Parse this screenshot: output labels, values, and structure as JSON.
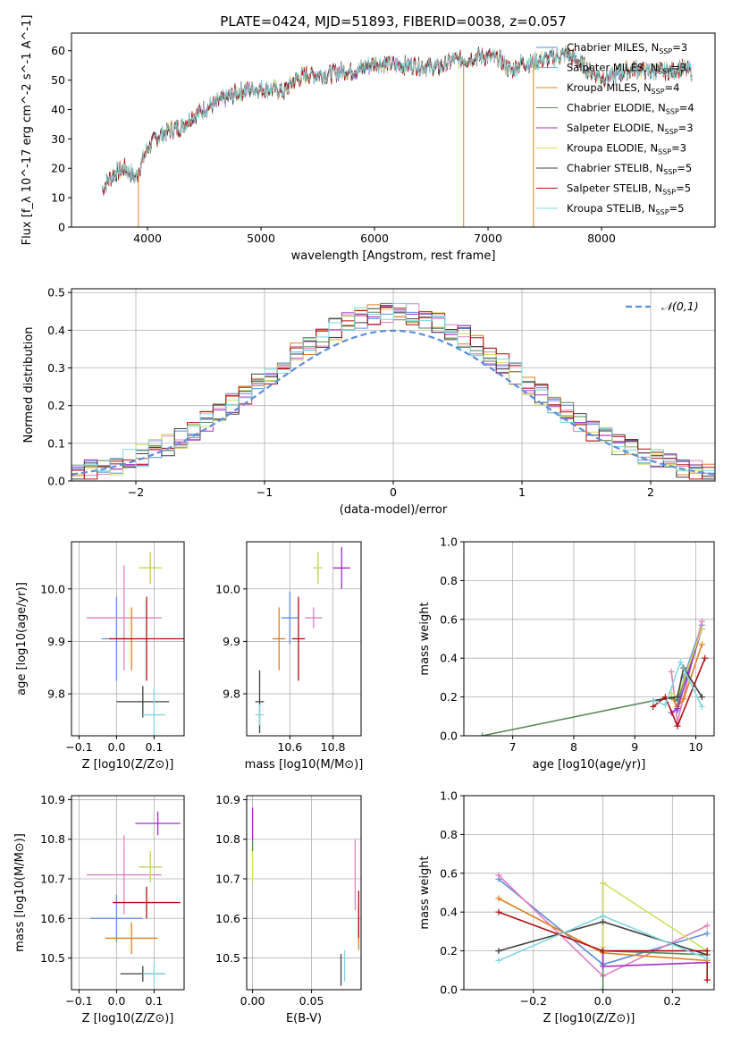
{
  "figure": {
    "title": "PLATE=0424, MJD=51893, FIBERID=0038, z=0.057"
  },
  "colors": {
    "Chabrier MILES": "#5b8fdc",
    "Salpeter MILES": "#e080c0",
    "Kroupa MILES": "#e08020",
    "Chabrier ELODIE": "#5a8a5a",
    "Salpeter ELODIE": "#a030c0",
    "Kroupa ELODIE": "#d0e060",
    "Chabrier STELIB": "#404040",
    "Salpeter STELIB": "#b01010",
    "Kroupa STELIB": "#80d8e0"
  },
  "legend_spectrum": [
    {
      "label": "Chabrier MILES, N_SSP=3",
      "model": "Chabrier MILES"
    },
    {
      "label": "Salpeter MILES, N_SSP=3",
      "model": "Salpeter MILES"
    },
    {
      "label": "Kroupa MILES, N_SSP=4",
      "model": "Kroupa MILES"
    },
    {
      "label": "Chabrier ELODIE, N_SSP=4",
      "model": "Chabrier ELODIE"
    },
    {
      "label": "Salpeter ELODIE, N_SSP=3",
      "model": "Salpeter ELODIE"
    },
    {
      "label": "Kroupa ELODIE, N_SSP=3",
      "model": "Kroupa ELODIE"
    },
    {
      "label": "Chabrier STELIB, N_SSP=5",
      "model": "Chabrier STELIB"
    },
    {
      "label": "Salpeter STELIB, N_SSP=5",
      "model": "Salpeter STELIB"
    },
    {
      "label": "Kroupa STELIB, N_SSP=5",
      "model": "Kroupa STELIB"
    }
  ],
  "chart_data": [
    {
      "type": "line",
      "id": "spectrum",
      "xlabel": "wavelength [Angstrom, rest frame]",
      "ylabel": "Flux [f_λ 10^-17 erg cm^-2 s^-1 A^-1]",
      "xlim": [
        3330,
        9000
      ],
      "ylim": [
        0,
        66
      ],
      "xticks": [
        "4000",
        "5000",
        "6000",
        "7000",
        "8000"
      ],
      "yticks": [
        "0",
        "10",
        "20",
        "30",
        "40",
        "50",
        "60"
      ],
      "grid": false,
      "legend_position": "right",
      "continuum": [
        [
          3600,
          13
        ],
        [
          3700,
          18
        ],
        [
          3800,
          20
        ],
        [
          3900,
          17
        ],
        [
          4000,
          27
        ],
        [
          4100,
          31
        ],
        [
          4200,
          33
        ],
        [
          4300,
          34
        ],
        [
          4400,
          38
        ],
        [
          4500,
          40
        ],
        [
          4600,
          42
        ],
        [
          4700,
          44
        ],
        [
          4800,
          46
        ],
        [
          4900,
          47
        ],
        [
          5000,
          47
        ],
        [
          5100,
          47
        ],
        [
          5200,
          46
        ],
        [
          5300,
          50
        ],
        [
          5400,
          52
        ],
        [
          5500,
          52
        ],
        [
          5600,
          52
        ],
        [
          5700,
          53
        ],
        [
          5800,
          53
        ],
        [
          5900,
          54
        ],
        [
          6000,
          56
        ],
        [
          6200,
          55
        ],
        [
          6400,
          55
        ],
        [
          6560,
          54
        ],
        [
          6700,
          57
        ],
        [
          6800,
          57
        ],
        [
          6900,
          58
        ],
        [
          7000,
          58
        ],
        [
          7100,
          57
        ],
        [
          7200,
          53
        ],
        [
          7300,
          56
        ],
        [
          7400,
          56
        ],
        [
          7500,
          57
        ],
        [
          7600,
          58
        ],
        [
          7700,
          59
        ],
        [
          7800,
          56
        ],
        [
          7900,
          53
        ],
        [
          8000,
          51
        ],
        [
          8100,
          51
        ],
        [
          8200,
          53
        ],
        [
          8300,
          54
        ],
        [
          8400,
          53
        ],
        [
          8500,
          53
        ],
        [
          8600,
          53
        ],
        [
          8700,
          54
        ],
        [
          8800,
          53
        ]
      ],
      "dropouts": [
        [
          3920,
          0
        ],
        [
          6785,
          0
        ],
        [
          7400,
          0
        ]
      ]
    },
    {
      "type": "line",
      "id": "residual-distribution",
      "xlabel": "(data-model)/error",
      "ylabel": "Normed distribution",
      "xlim": [
        -2.5,
        2.5
      ],
      "ylim": [
        0,
        0.51
      ],
      "xticks": [
        "−2",
        "−1",
        "0",
        "1",
        "2"
      ],
      "yticks": [
        "0.0",
        "0.1",
        "0.2",
        "0.3",
        "0.4",
        "0.5"
      ],
      "grid": true,
      "legend": "𝒩(0,1)",
      "legend_position": "top-right",
      "bin_width": 0.1,
      "bin_start": -2.5,
      "base_histogram": [
        0.02,
        0.03,
        0.04,
        0.05,
        0.06,
        0.07,
        0.07,
        0.08,
        0.09,
        0.1,
        0.12,
        0.13,
        0.15,
        0.16,
        0.19,
        0.21,
        0.23,
        0.24,
        0.27,
        0.3,
        0.31,
        0.34,
        0.37,
        0.38,
        0.4,
        0.43,
        0.43,
        0.44,
        0.45,
        0.44,
        0.42,
        0.42,
        0.41,
        0.4,
        0.38,
        0.37,
        0.36,
        0.33,
        0.32,
        0.3,
        0.27,
        0.26,
        0.23,
        0.22,
        0.2,
        0.17,
        0.16,
        0.13,
        0.12,
        0.1,
        0.08,
        0.08,
        0.07,
        0.06,
        0.05,
        0.05,
        0.04,
        0.03,
        0.03,
        0.02,
        0.03,
        0.02,
        0.02,
        0.02,
        0.02,
        0.02,
        0.02,
        0.02,
        0.02,
        0.02,
        0.02,
        0.02,
        0.03,
        0.02,
        0.03,
        0.03,
        0.02,
        0.03,
        0.02,
        0.02,
        0.02,
        0.02,
        0.02,
        0.02,
        0.02,
        0.02,
        0.02,
        0.02,
        0.02,
        0.02,
        0.02,
        0.02,
        0.02,
        0.02,
        0.02,
        0.02,
        0.02,
        0.02,
        0.02,
        0.02
      ]
    },
    {
      "type": "scatter",
      "id": "age-vs-metallicity",
      "xlabel": "Z [log10(Z/Z⊙)]",
      "ylabel": "age [log10(age/yr)]",
      "xlim": [
        -0.12,
        0.18
      ],
      "ylim": [
        9.72,
        10.09
      ],
      "xticks": [
        "−0.1",
        "0.0",
        "0.1"
      ],
      "yticks": [
        "9.8",
        "9.9",
        "10.0"
      ],
      "grid": true,
      "points": [
        {
          "model": "Chabrier MILES",
          "x": 0.0,
          "y": 9.905,
          "dx": 0.04,
          "dy": 0.08
        },
        {
          "model": "Salpeter MILES",
          "x": 0.02,
          "y": 9.945,
          "dx": 0.1,
          "dy": 0.1
        },
        {
          "model": "Kroupa MILES",
          "x": 0.04,
          "y": 9.905,
          "dx": 0.04,
          "dy": 0.06
        },
        {
          "model": "Chabrier ELODIE",
          "x": 0.09,
          "y": 10.04,
          "dx": 0.03,
          "dy": 0.03
        },
        {
          "model": "Salpeter ELODIE",
          "x": 0.09,
          "y": 10.04,
          "dx": 0.02,
          "dy": 0.03
        },
        {
          "model": "Kroupa ELODIE",
          "x": 0.09,
          "y": 10.04,
          "dx": 0.03,
          "dy": 0.03
        },
        {
          "model": "Chabrier STELIB",
          "x": 0.07,
          "y": 9.785,
          "dx": 0.07,
          "dy": 0.03
        },
        {
          "model": "Salpeter STELIB",
          "x": 0.08,
          "y": 9.905,
          "dx": 0.1,
          "dy": 0.08
        },
        {
          "model": "Kroupa STELIB",
          "x": 0.1,
          "y": 9.76,
          "dx": 0.03,
          "dy": 0.05
        }
      ]
    },
    {
      "type": "scatter",
      "id": "age-vs-mass",
      "xlabel": "mass [log10(M/M⊙)]",
      "ylabel": "",
      "xlim": [
        10.4,
        10.93
      ],
      "ylim": [
        9.72,
        10.09
      ],
      "xticks": [
        "10.6",
        "10.8"
      ],
      "yticks": [
        "9.8",
        "9.9",
        "10.0"
      ],
      "grid": true,
      "points": [
        {
          "model": "Chabrier MILES",
          "x": 10.6,
          "y": 9.945,
          "dx": 0.04,
          "dy": 0.05
        },
        {
          "model": "Salpeter MILES",
          "x": 10.71,
          "y": 9.945,
          "dx": 0.04,
          "dy": 0.02
        },
        {
          "model": "Kroupa MILES",
          "x": 10.55,
          "y": 9.905,
          "dx": 0.03,
          "dy": 0.06
        },
        {
          "model": "Chabrier ELODIE",
          "x": 10.73,
          "y": 10.04,
          "dx": 0.02,
          "dy": 0.03
        },
        {
          "model": "Salpeter ELODIE",
          "x": 10.84,
          "y": 10.04,
          "dx": 0.04,
          "dy": 0.04
        },
        {
          "model": "Kroupa ELODIE",
          "x": 10.73,
          "y": 10.04,
          "dx": 0.02,
          "dy": 0.03
        },
        {
          "model": "Chabrier STELIB",
          "x": 10.46,
          "y": 9.785,
          "dx": 0.02,
          "dy": 0.06
        },
        {
          "model": "Salpeter STELIB",
          "x": 10.64,
          "y": 9.905,
          "dx": 0.03,
          "dy": 0.08
        },
        {
          "model": "Kroupa STELIB",
          "x": 10.46,
          "y": 9.76,
          "dx": 0.02,
          "dy": 0.02
        }
      ]
    },
    {
      "type": "line",
      "id": "mass-weight-vs-age",
      "xlabel": "age [log10(age/yr)]",
      "ylabel": "mass weight",
      "xlim": [
        6.2,
        10.3
      ],
      "ylim": [
        0,
        1.0
      ],
      "xticks": [
        "7",
        "8",
        "9",
        "10"
      ],
      "yticks": [
        "0.0",
        "0.2",
        "0.4",
        "0.6",
        "0.8",
        "1.0"
      ],
      "grid": true,
      "series": [
        {
          "model": "Chabrier MILES",
          "x": [
            9.7,
            9.8,
            10.1
          ],
          "y": [
            0.13,
            0.3,
            0.57
          ]
        },
        {
          "model": "Salpeter MILES",
          "x": [
            9.6,
            9.7,
            10.1
          ],
          "y": [
            0.33,
            0.07,
            0.59
          ]
        },
        {
          "model": "Kroupa MILES",
          "x": [
            9.6,
            9.7,
            9.8,
            10.1
          ],
          "y": [
            0.2,
            0.15,
            0.19,
            0.47
          ]
        },
        {
          "model": "Chabrier ELODIE",
          "x": [
            6.5,
            9.6,
            9.7,
            10.1
          ],
          "y": [
            0.0,
            0.2,
            0.18,
            0.55
          ]
        },
        {
          "model": "Salpeter ELODIE",
          "x": [
            9.6,
            9.7,
            10.1
          ],
          "y": [
            0.12,
            0.14,
            0.55
          ]
        },
        {
          "model": "Kroupa ELODIE",
          "x": [
            9.6,
            9.7,
            10.1
          ],
          "y": [
            0.22,
            0.2,
            0.55
          ]
        },
        {
          "model": "Chabrier STELIB",
          "x": [
            9.3,
            9.7,
            9.8,
            10.1
          ],
          "y": [
            0.18,
            0.2,
            0.35,
            0.2
          ]
        },
        {
          "model": "Salpeter STELIB",
          "x": [
            9.3,
            9.5,
            9.7,
            10.15
          ],
          "y": [
            0.15,
            0.2,
            0.05,
            0.4
          ]
        },
        {
          "model": "Kroupa STELIB",
          "x": [
            9.3,
            9.5,
            9.75,
            10.1
          ],
          "y": [
            0.18,
            0.16,
            0.38,
            0.15
          ]
        }
      ]
    },
    {
      "type": "scatter",
      "id": "mass-vs-metallicity",
      "xlabel": "Z [log10(Z/Z⊙)]",
      "ylabel": "mass [log10(M/M⊙)]",
      "xlim": [
        -0.12,
        0.18
      ],
      "ylim": [
        10.42,
        10.91
      ],
      "xticks": [
        "−0.1",
        "0.0",
        "0.1"
      ],
      "yticks": [
        "10.5",
        "10.6",
        "10.7",
        "10.8",
        "10.9"
      ],
      "grid": true,
      "points": [
        {
          "model": "Chabrier MILES",
          "x": 0.0,
          "y": 10.6,
          "dx": 0.07,
          "dy": 0.06
        },
        {
          "model": "Salpeter MILES",
          "x": 0.02,
          "y": 10.71,
          "dx": 0.1,
          "dy": 0.1
        },
        {
          "model": "Kroupa MILES",
          "x": 0.04,
          "y": 10.55,
          "dx": 0.07,
          "dy": 0.04
        },
        {
          "model": "Chabrier ELODIE",
          "x": 0.09,
          "y": 10.73,
          "dx": 0.03,
          "dy": 0.04
        },
        {
          "model": "Salpeter ELODIE",
          "x": 0.11,
          "y": 10.84,
          "dx": 0.06,
          "dy": 0.03
        },
        {
          "model": "Kroupa ELODIE",
          "x": 0.09,
          "y": 10.73,
          "dx": 0.03,
          "dy": 0.04
        },
        {
          "model": "Chabrier STELIB",
          "x": 0.07,
          "y": 10.46,
          "dx": 0.06,
          "dy": 0.02
        },
        {
          "model": "Salpeter STELIB",
          "x": 0.08,
          "y": 10.64,
          "dx": 0.09,
          "dy": 0.04
        },
        {
          "model": "Kroupa STELIB",
          "x": 0.1,
          "y": 10.46,
          "dx": 0.03,
          "dy": 0.03
        }
      ]
    },
    {
      "type": "scatter",
      "id": "mass-vs-ebv",
      "xlabel": "E(B-V)",
      "ylabel": "",
      "xlim": [
        -0.005,
        0.092
      ],
      "ylim": [
        10.42,
        10.91
      ],
      "xticks": [
        "0.00",
        "0.05"
      ],
      "yticks": [
        "10.5",
        "10.6",
        "10.7",
        "10.8",
        "10.9"
      ],
      "grid": true,
      "points": [
        {
          "model": "Chabrier MILES",
          "x": 0.0,
          "y": 10.6,
          "dx": 0,
          "dy": 0.0
        },
        {
          "model": "Salpeter MILES",
          "x": 0.087,
          "y": 10.71,
          "dx": 0,
          "dy": 0.09
        },
        {
          "model": "Kroupa MILES",
          "x": 0.09,
          "y": 10.58,
          "dx": 0,
          "dy": 0.06
        },
        {
          "model": "Chabrier ELODIE",
          "x": 0.0,
          "y": 10.79,
          "dx": 0,
          "dy": 0.02
        },
        {
          "model": "Salpeter ELODIE",
          "x": 0.0,
          "y": 10.84,
          "dx": 0,
          "dy": 0.04
        },
        {
          "model": "Kroupa ELODIE",
          "x": 0.0,
          "y": 10.73,
          "dx": 0,
          "dy": 0.04
        },
        {
          "model": "Chabrier STELIB",
          "x": 0.075,
          "y": 10.47,
          "dx": 0,
          "dy": 0.04
        },
        {
          "model": "Salpeter STELIB",
          "x": 0.09,
          "y": 10.61,
          "dx": 0,
          "dy": 0.06
        },
        {
          "model": "Kroupa STELIB",
          "x": 0.078,
          "y": 10.48,
          "dx": 0,
          "dy": 0.04
        }
      ]
    },
    {
      "type": "line",
      "id": "mass-weight-vs-metallicity",
      "xlabel": "Z [log10(Z/Z⊙)]",
      "ylabel": "mass weight",
      "xlim": [
        -0.4,
        0.32
      ],
      "ylim": [
        0,
        1.0
      ],
      "xticks": [
        "−0.2",
        "0.0",
        "0.2"
      ],
      "yticks": [
        "0.0",
        "0.2",
        "0.4",
        "0.6",
        "0.8",
        "1.0"
      ],
      "grid": true,
      "series": [
        {
          "model": "Chabrier MILES",
          "x": [
            -0.3,
            0.0,
            0.3
          ],
          "y": [
            0.57,
            0.13,
            0.29
          ]
        },
        {
          "model": "Salpeter MILES",
          "x": [
            -0.3,
            0.0,
            0.3
          ],
          "y": [
            0.59,
            0.07,
            0.33
          ]
        },
        {
          "model": "Kroupa MILES",
          "x": [
            -0.3,
            0.0,
            0.3
          ],
          "y": [
            0.47,
            0.19,
            0.15
          ]
        },
        {
          "model": "Chabrier ELODIE",
          "x": [
            0.0,
            0.0,
            0.3
          ],
          "y": [
            0.0,
            0.2,
            0.18
          ]
        },
        {
          "model": "Salpeter ELODIE",
          "x": [
            0.0,
            0.0,
            0.3
          ],
          "y": [
            0.55,
            0.12,
            0.14
          ]
        },
        {
          "model": "Kroupa ELODIE",
          "x": [
            0.0,
            0.0,
            0.3
          ],
          "y": [
            0.22,
            0.55,
            0.2
          ]
        },
        {
          "model": "Chabrier STELIB",
          "x": [
            -0.3,
            0.0,
            0.3
          ],
          "y": [
            0.2,
            0.35,
            0.18
          ]
        },
        {
          "model": "Salpeter STELIB",
          "x": [
            -0.3,
            0.0,
            0.3,
            0.3
          ],
          "y": [
            0.4,
            0.2,
            0.2,
            0.05
          ]
        },
        {
          "model": "Kroupa STELIB",
          "x": [
            -0.3,
            0.0,
            0.3
          ],
          "y": [
            0.15,
            0.38,
            0.16
          ]
        }
      ]
    }
  ]
}
